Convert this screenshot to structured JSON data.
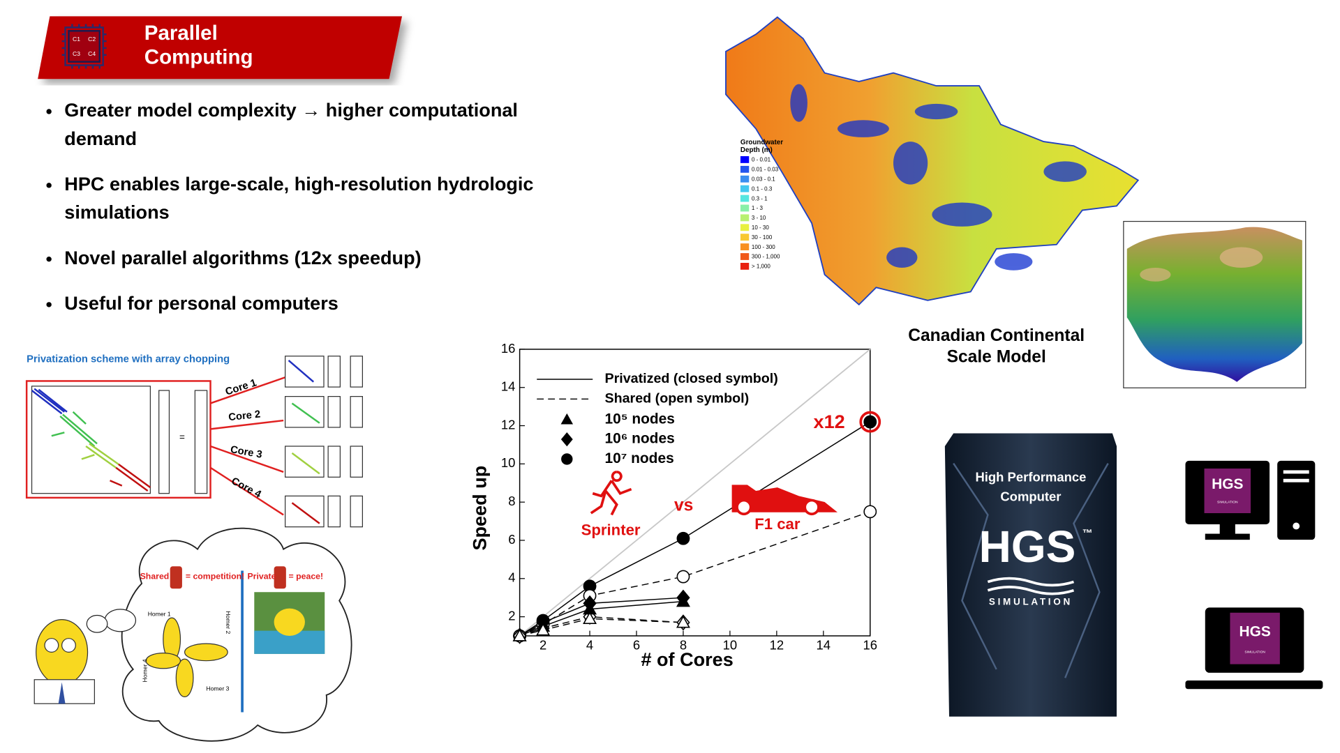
{
  "header": {
    "title_lines": [
      "Parallel",
      "Computing"
    ],
    "chip": [
      "C1",
      "C2",
      "C3",
      "C4"
    ]
  },
  "bullets": [
    [
      "Greater model complexity → higher computational",
      "demand"
    ],
    [
      "HPC enables large-scale, high-resolution hydrologic",
      "simulations"
    ],
    [
      "Novel parallel algorithms (12x speedup)"
    ],
    [
      "Useful for personal computers"
    ]
  ],
  "scheme": {
    "title": "Privatization scheme with array chopping",
    "cores": [
      "Core 1",
      "Core 2",
      "Core 3",
      "Core 4"
    ]
  },
  "cartoon": {
    "shared": "Shared",
    "shared_result": "= competition!",
    "private": "Private",
    "private_result": "= peace!",
    "homers": [
      "Homer 1",
      "Homer 2",
      "Homer 3",
      "Homer 4"
    ]
  },
  "chart_data": {
    "type": "line",
    "x": [
      1,
      2,
      4,
      8,
      16
    ],
    "xlim": [
      1,
      16
    ],
    "ylim": [
      1,
      16
    ],
    "xticks": [
      2,
      4,
      6,
      8,
      10,
      12,
      14,
      16
    ],
    "yticks": [
      2,
      4,
      6,
      8,
      10,
      12,
      14,
      16
    ],
    "xlabel": "# of Cores",
    "ylabel": "Speed up",
    "styles": [
      {
        "label": "Privatized (closed symbol)",
        "dash": false
      },
      {
        "label": "Shared (open symbol)",
        "dash": true
      }
    ],
    "markers": [
      {
        "label": "10⁵ nodes",
        "shape": "triangle"
      },
      {
        "label": "10⁶ nodes",
        "shape": "diamond"
      },
      {
        "label": "10⁷ nodes",
        "shape": "circle"
      }
    ],
    "series": [
      {
        "style": 0,
        "marker": 2,
        "values": [
          1,
          1.8,
          3.6,
          6.1,
          12.2
        ]
      },
      {
        "style": 1,
        "marker": 2,
        "values": [
          1,
          1.6,
          3.1,
          4.1,
          7.5
        ]
      },
      {
        "style": 0,
        "marker": 1,
        "values": [
          1,
          1.7,
          2.7,
          3.0,
          null
        ]
      },
      {
        "style": 1,
        "marker": 1,
        "values": [
          1,
          1.4,
          2.0,
          1.7,
          null
        ]
      },
      {
        "style": 0,
        "marker": 0,
        "values": [
          1,
          1.5,
          2.4,
          2.8,
          null
        ]
      },
      {
        "style": 1,
        "marker": 0,
        "values": [
          1,
          1.3,
          1.9,
          1.7,
          null
        ]
      }
    ],
    "annotations": {
      "speedup": "x12",
      "sprinter": "Sprinter",
      "vs": "vs",
      "car": "F1 car"
    },
    "annotation_color": "#e01010",
    "reference_color": "#c8c8c8"
  },
  "map": {
    "legend_title_lines": [
      "Groundwater",
      "Depth (m)"
    ],
    "legend": [
      {
        "label": "0 - 0.01",
        "color": "#0000ff"
      },
      {
        "label": "0.01 - 0.03",
        "color": "#2255ee"
      },
      {
        "label": "0.03 - 0.1",
        "color": "#3a8ef0"
      },
      {
        "label": "0.1 - 0.3",
        "color": "#44c8f0"
      },
      {
        "label": "0.3 - 1",
        "color": "#55e6e0"
      },
      {
        "label": "1 - 3",
        "color": "#88f0a8"
      },
      {
        "label": "3 - 10",
        "color": "#b8f070"
      },
      {
        "label": "10 - 30",
        "color": "#e8f040"
      },
      {
        "label": "30 - 100",
        "color": "#f8c830"
      },
      {
        "label": "100 - 300",
        "color": "#f89020"
      },
      {
        "label": "300 - 1,000",
        "color": "#f05818"
      },
      {
        "label": "> 1,000",
        "color": "#e82010"
      }
    ],
    "caption_lines": [
      "Canadian Continental",
      "Scale Model"
    ]
  },
  "hpc": {
    "caption_lines": [
      "High Performance",
      "Computer"
    ],
    "logo": "HGS",
    "tm": "™",
    "sub": "SIMULATION"
  },
  "icons": {
    "logo": "HGS",
    "sub": "SIMULATION"
  }
}
